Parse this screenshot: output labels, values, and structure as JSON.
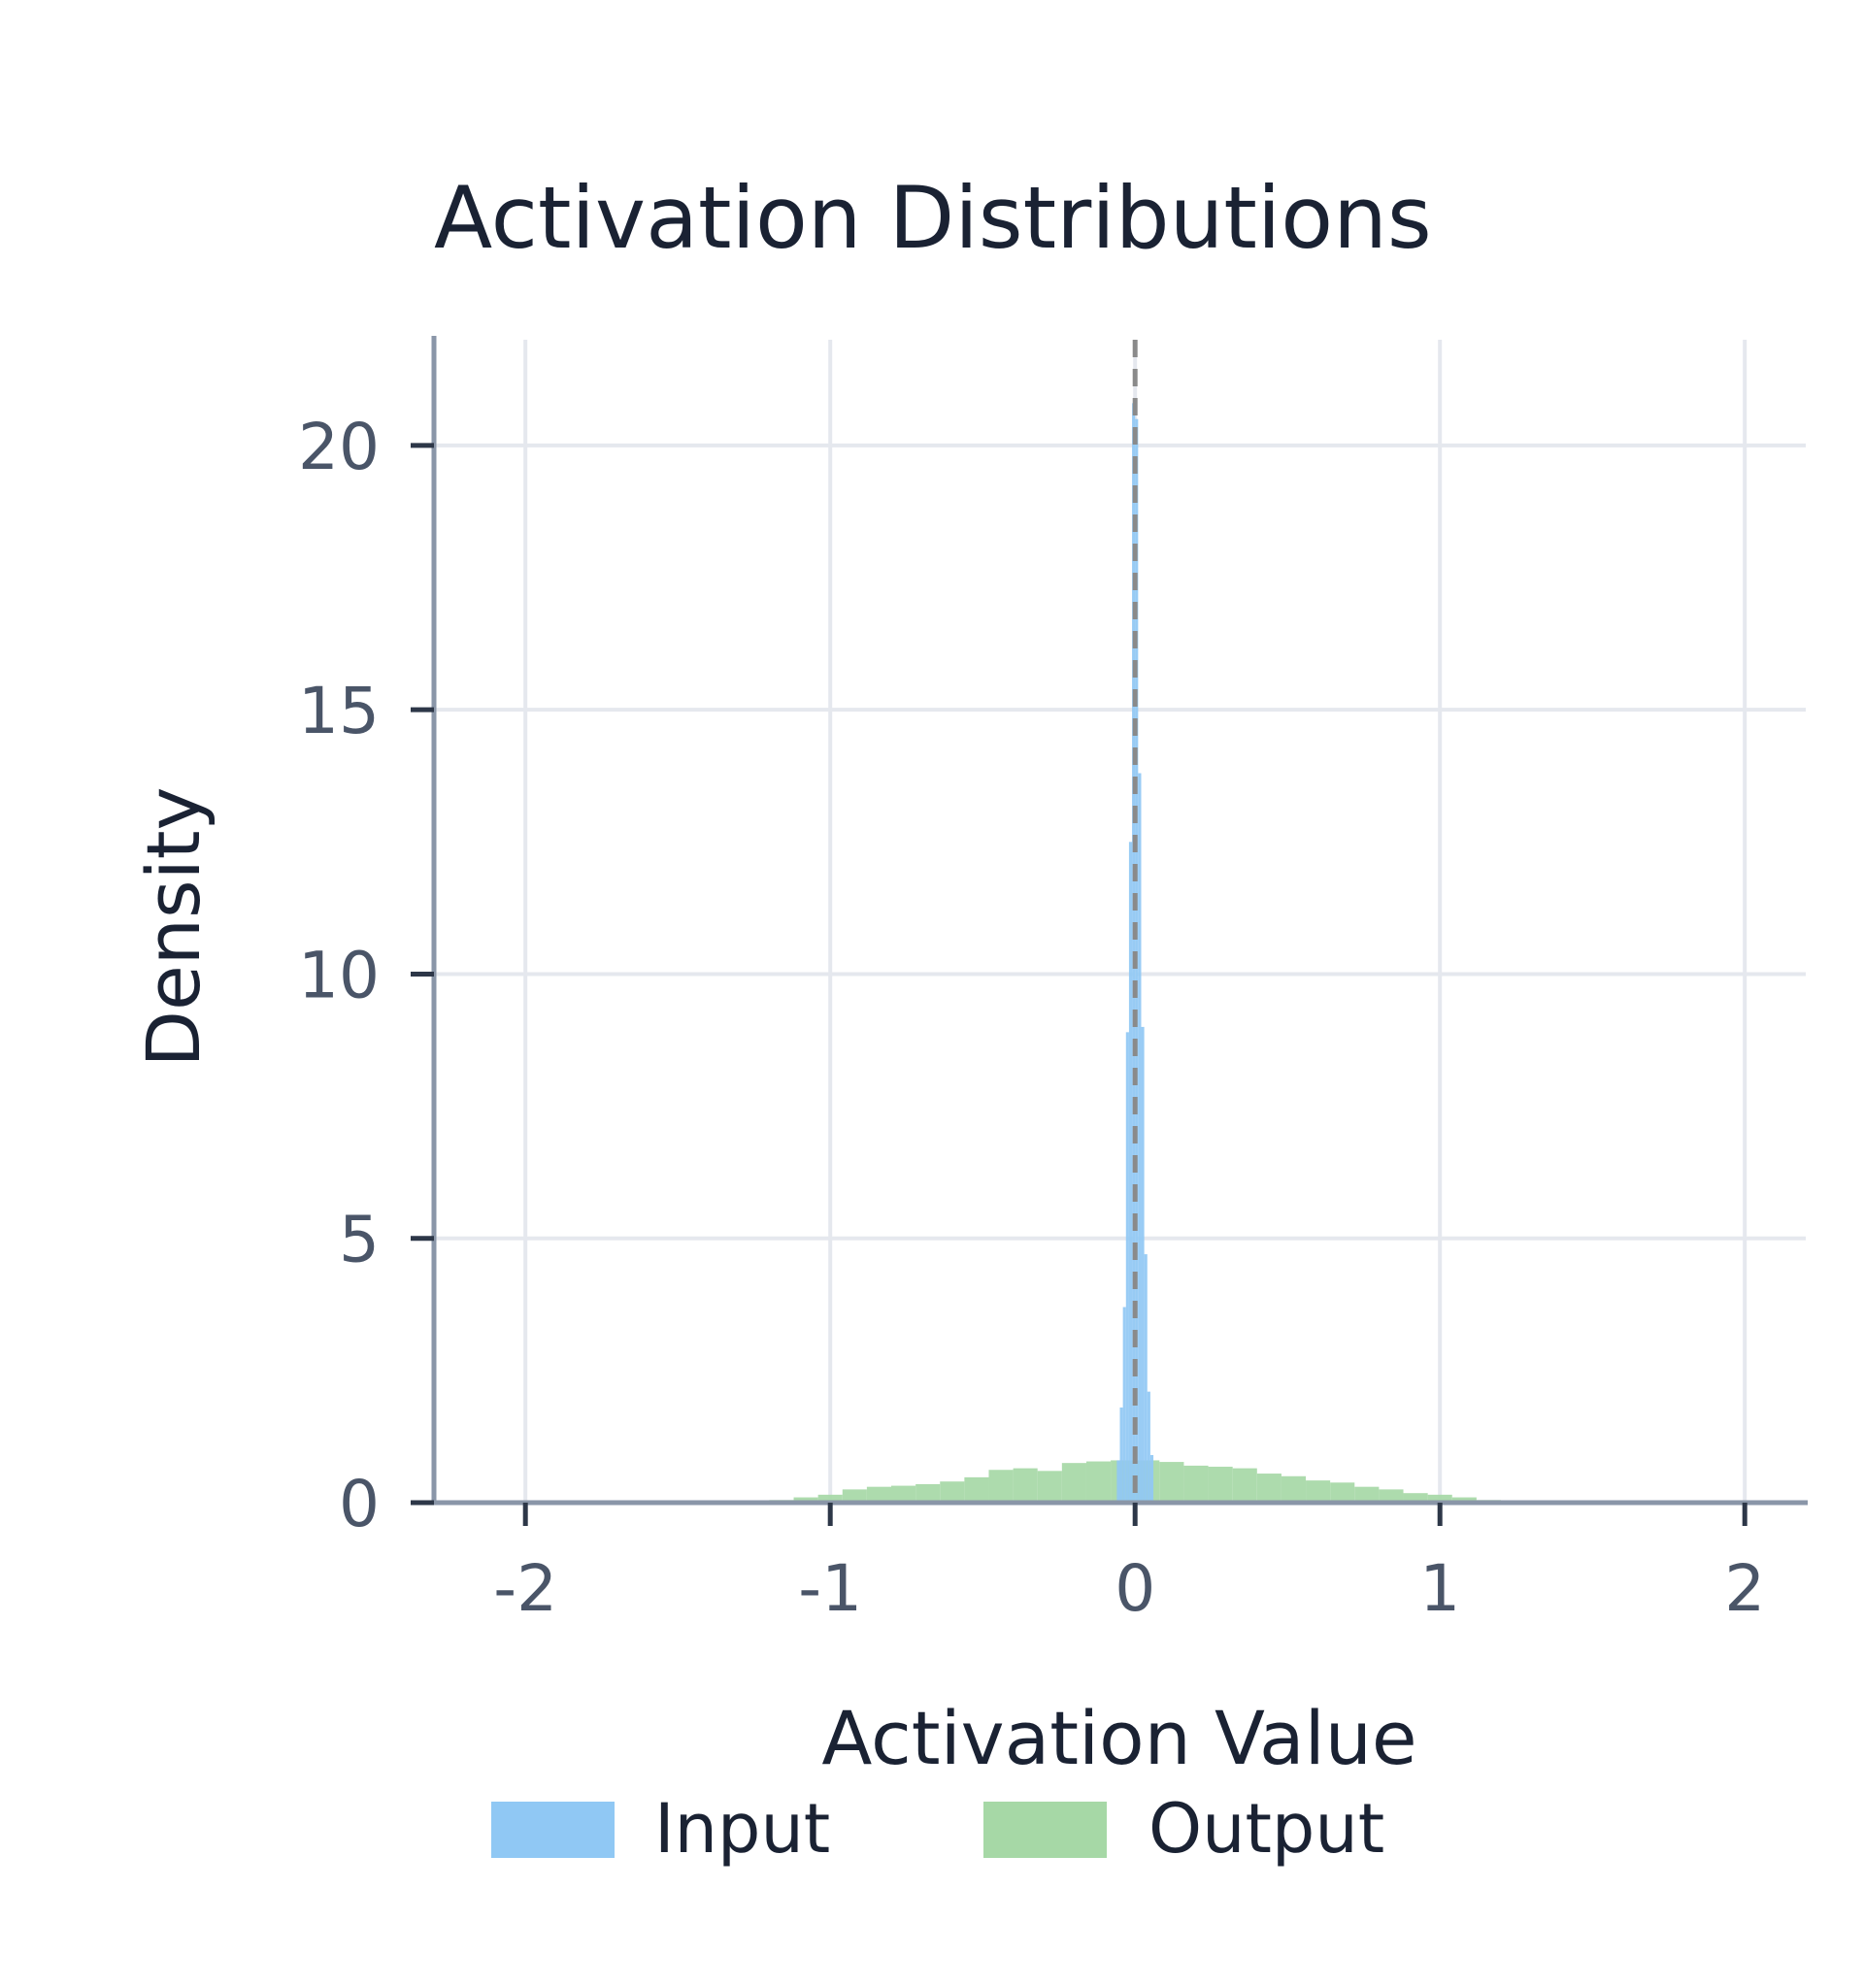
{
  "chart_data": {
    "type": "histogram",
    "title": "Activation Distributions",
    "xlabel": "Activation Value",
    "ylabel": "Density",
    "xlim": [
      -2.3,
      2.2
    ],
    "ylim": [
      0,
      22
    ],
    "xticks": [
      -2,
      -1,
      0,
      1,
      2
    ],
    "xtick_labels": [
      "-2",
      "-1",
      "0",
      "1",
      "2"
    ],
    "yticks": [
      0,
      5,
      10,
      15,
      20
    ],
    "ytick_labels": [
      "0",
      "5",
      "10",
      "15",
      "20"
    ],
    "grid": true,
    "legend_position": "bottom",
    "reference_line": {
      "x": 0,
      "style": "dashed",
      "color": "#8a8a8a"
    },
    "series": [
      {
        "name": "Input",
        "color": "#90c8f4",
        "bin_edges": [
          -0.06,
          -0.05,
          -0.04,
          -0.03,
          -0.02,
          -0.01,
          0.0,
          0.01,
          0.02,
          0.03,
          0.04,
          0.05,
          0.06
        ],
        "values": [
          0.8,
          1.8,
          3.7,
          8.9,
          12.5,
          20.8,
          20.5,
          13.8,
          9.0,
          4.7,
          2.1,
          0.9
        ]
      },
      {
        "name": "Output",
        "color": "#a6d8a6",
        "bin_edges": [
          -1.2,
          -1.12,
          -1.04,
          -0.96,
          -0.88,
          -0.8,
          -0.72,
          -0.64,
          -0.56,
          -0.48,
          -0.4,
          -0.32,
          -0.24,
          -0.16,
          -0.08,
          0.0,
          0.08,
          0.16,
          0.24,
          0.32,
          0.4,
          0.48,
          0.56,
          0.64,
          0.72,
          0.8,
          0.88,
          0.96,
          1.04,
          1.12,
          1.2
        ],
        "values": [
          0.05,
          0.1,
          0.15,
          0.25,
          0.3,
          0.32,
          0.35,
          0.4,
          0.48,
          0.62,
          0.65,
          0.6,
          0.75,
          0.78,
          0.8,
          0.8,
          0.77,
          0.7,
          0.68,
          0.65,
          0.55,
          0.5,
          0.42,
          0.38,
          0.3,
          0.25,
          0.18,
          0.15,
          0.1,
          0.05
        ]
      }
    ]
  }
}
